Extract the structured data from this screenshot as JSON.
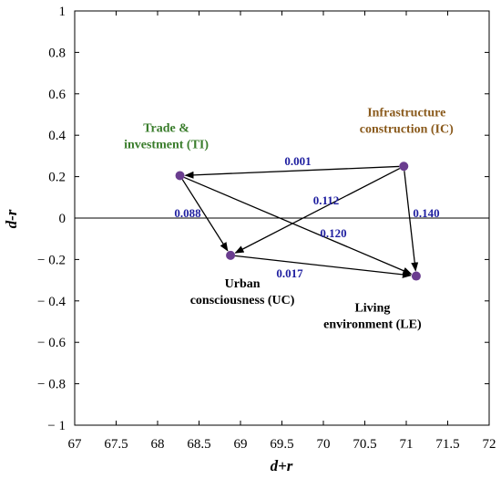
{
  "chart_data": {
    "type": "scatter",
    "title": "",
    "xlabel": "d+r",
    "ylabel": "d-r",
    "xlim": [
      67,
      72
    ],
    "ylim": [
      -1,
      1
    ],
    "x_ticks": [
      67,
      67.5,
      68,
      68.5,
      69,
      69.5,
      70,
      70.5,
      71,
      71.5,
      72
    ],
    "x_tick_labels": [
      "67",
      "67.5",
      "68",
      "68.5",
      "69",
      "69.5",
      "70",
      "70.5",
      "71",
      "71.5",
      "72"
    ],
    "y_ticks": [
      1,
      0.8,
      0.6,
      0.4,
      0.2,
      0,
      -0.2,
      -0.4,
      -0.6,
      -0.8,
      -1
    ],
    "y_tick_labels": [
      "1",
      "0.8",
      "0.6",
      "0.4",
      "0.2",
      "0",
      "− 0.2",
      "− 0.4",
      "− 0.6",
      "− 0.8",
      "− 1"
    ],
    "zero_line": true,
    "grid": false,
    "points": [
      {
        "id": "TI",
        "label_lines": [
          "Trade &",
          "investment (TI)"
        ],
        "x": 68.27,
        "y": 0.205,
        "label_color": "#3a7d2c"
      },
      {
        "id": "IC",
        "label_lines": [
          "Infrastructure",
          "construction (IC)"
        ],
        "x": 70.97,
        "y": 0.25,
        "label_color": "#8a5a1c"
      },
      {
        "id": "UC",
        "label_lines": [
          "Urban",
          "consciousness (UC)"
        ],
        "x": 68.88,
        "y": -0.18,
        "label_color": "#000000"
      },
      {
        "id": "LE",
        "label_lines": [
          "Living",
          "environment (LE)"
        ],
        "x": 71.12,
        "y": -0.28,
        "label_color": "#000000"
      }
    ],
    "edges": [
      {
        "from": "IC",
        "to": "TI",
        "label": "0.001"
      },
      {
        "from": "IC",
        "to": "UC",
        "label": "0.112"
      },
      {
        "from": "IC",
        "to": "LE",
        "label": "0.140"
      },
      {
        "from": "TI",
        "to": "UC",
        "label": "0.088"
      },
      {
        "from": "TI",
        "to": "LE",
        "label": "0.120"
      },
      {
        "from": "UC",
        "to": "LE",
        "label": "0.017"
      }
    ],
    "colors": {
      "point": "#6a3d8f",
      "edge_label": "#1f1fa0",
      "arrow": "#000000"
    }
  }
}
